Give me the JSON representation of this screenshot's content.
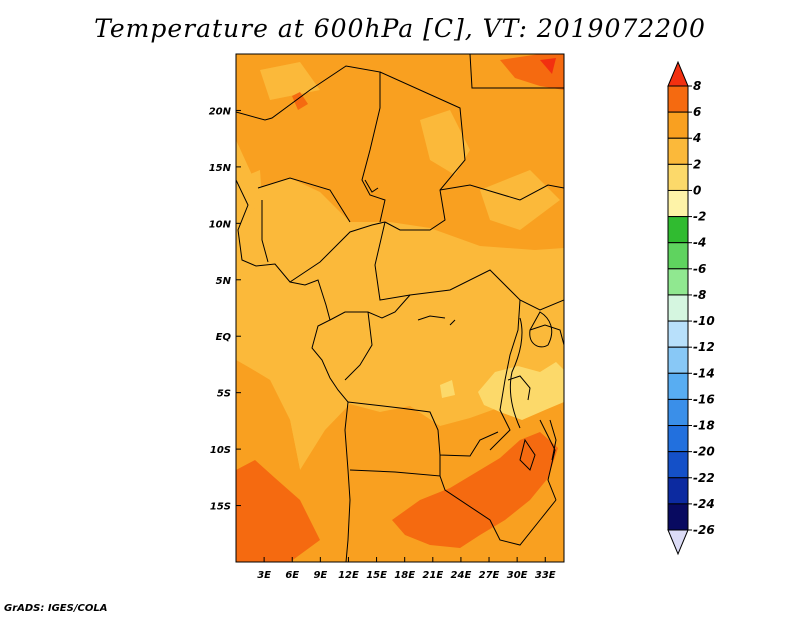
{
  "title": "Temperature at 600hPa [C], VT: 2019072200",
  "credit": "GrADS: IGES/COLA",
  "map": {
    "lon_range": [
      0,
      35
    ],
    "lat_range": [
      -20,
      25
    ],
    "x_ticks": [
      {
        "value": 3,
        "label": "3E"
      },
      {
        "value": 6,
        "label": "6E"
      },
      {
        "value": 9,
        "label": "9E"
      },
      {
        "value": 12,
        "label": "12E"
      },
      {
        "value": 15,
        "label": "15E"
      },
      {
        "value": 18,
        "label": "18E"
      },
      {
        "value": 21,
        "label": "21E"
      },
      {
        "value": 24,
        "label": "24E"
      },
      {
        "value": 27,
        "label": "27E"
      },
      {
        "value": 30,
        "label": "30E"
      },
      {
        "value": 33,
        "label": "33E"
      }
    ],
    "y_ticks": [
      {
        "value": 20,
        "label": "20N"
      },
      {
        "value": 15,
        "label": "15N"
      },
      {
        "value": 10,
        "label": "10N"
      },
      {
        "value": 5,
        "label": "5N"
      },
      {
        "value": 0,
        "label": "EQ"
      },
      {
        "value": -5,
        "label": "5S"
      },
      {
        "value": -10,
        "label": "10S"
      },
      {
        "value": -15,
        "label": "15S"
      }
    ]
  },
  "colorbar": {
    "labels": [
      "8",
      "6",
      "4",
      "2",
      "0",
      "-2",
      "-4",
      "-6",
      "-8",
      "-10",
      "-12",
      "-14",
      "-16",
      "-18",
      "-20",
      "-22",
      "-24",
      "-26"
    ],
    "colors": [
      "#f23010",
      "#f56a10",
      "#f9a020",
      "#fbb93a",
      "#fcd96a",
      "#fef3a8",
      "#30bb30",
      "#5fd35f",
      "#90e890",
      "#d5f6e0",
      "#b8e0fb",
      "#88c8f6",
      "#58adf2",
      "#3a8fe9",
      "#2270de",
      "#1450c8",
      "#0c2aa0",
      "#080a60",
      "#dcdcf6"
    ]
  }
}
